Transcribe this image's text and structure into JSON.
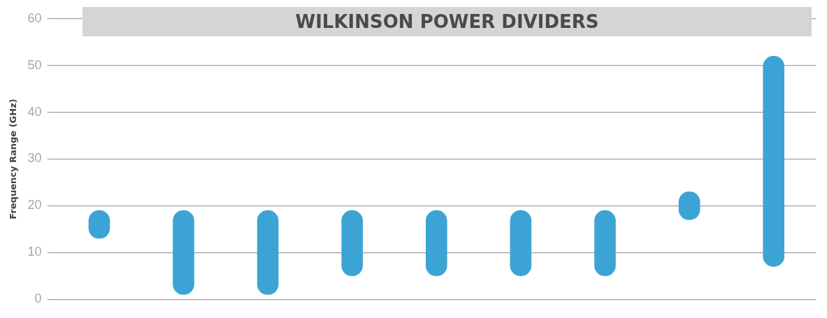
{
  "chart_data": {
    "type": "bar",
    "title": "WILKINSON POWER DIVIDERS",
    "ylabel": "Frequency Range (GHz)",
    "categories": [
      null,
      null,
      null,
      null,
      null,
      null,
      null,
      null,
      null
    ],
    "base": [
      13,
      1,
      1,
      5,
      5,
      5,
      5,
      17,
      7
    ],
    "values": [
      6,
      18,
      18,
      14,
      14,
      14,
      14,
      6,
      45
    ],
    "color": "#3ca4d5",
    "ylim": [
      0,
      60
    ],
    "yticks": [
      0,
      10,
      20,
      30,
      40,
      50,
      60
    ],
    "grid": "y"
  }
}
